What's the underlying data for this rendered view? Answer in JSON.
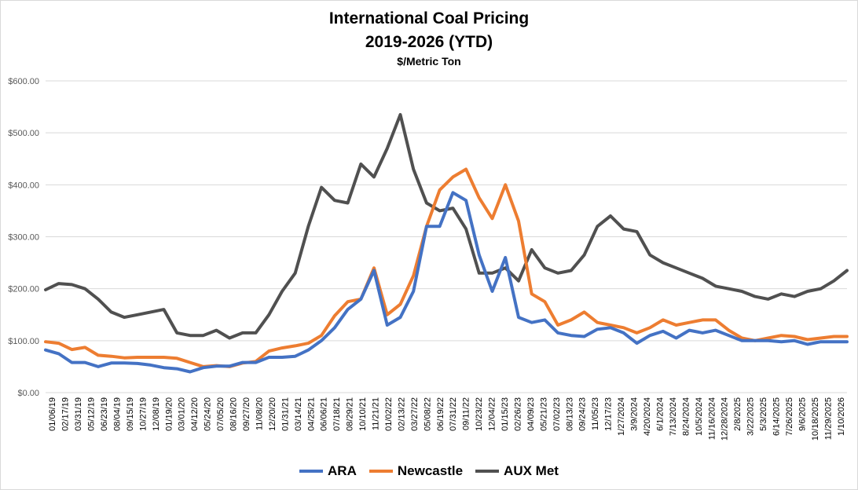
{
  "chart_data": {
    "type": "line",
    "title": "International Coal Pricing",
    "subtitle": "2019-2026 (YTD)",
    "ylabel": "$/Metric Ton",
    "ylim": [
      0,
      600
    ],
    "y_ticks": [
      "$0.00",
      "$100.00",
      "$200.00",
      "$300.00",
      "$400.00",
      "$500.00",
      "$600.00"
    ],
    "x_tick_labels": [
      "01/06/19",
      "02/17/19",
      "03/31/19",
      "05/12/19",
      "06/23/19",
      "08/04/19",
      "09/15/19",
      "10/27/19",
      "12/08/19",
      "01/19/20",
      "03/01/20",
      "04/12/20",
      "05/24/20",
      "07/05/20",
      "08/16/20",
      "09/27/20",
      "11/08/20",
      "12/20/20",
      "01/31/21",
      "03/14/21",
      "04/25/21",
      "06/06/21",
      "07/18/21",
      "08/29/21",
      "10/10/21",
      "11/21/21",
      "01/02/22",
      "02/13/22",
      "03/27/22",
      "05/08/22",
      "06/19/22",
      "07/31/22",
      "09/11/22",
      "10/23/22",
      "12/04/22",
      "01/15/23",
      "02/26/23",
      "04/09/23",
      "05/21/23",
      "07/02/23",
      "08/13/23",
      "09/24/23",
      "11/05/23",
      "12/17/23",
      "1/27/2024",
      "3/9/2024",
      "4/20/2024",
      "6/1/2024",
      "7/13/2024",
      "8/24/2024",
      "10/5/2024",
      "11/16/2024",
      "12/28/2024",
      "2/8/2025",
      "3/22/2025",
      "5/3/2025",
      "6/14/2025",
      "7/26/2025",
      "9/6/2025",
      "10/18/2025",
      "11/29/2025",
      "1/10/2026"
    ],
    "grid": true,
    "legend_position": "bottom",
    "series": [
      {
        "name": "ARA",
        "color": "#4472c4",
        "values": [
          82,
          75,
          58,
          58,
          50,
          57,
          57,
          56,
          53,
          48,
          46,
          40,
          48,
          51,
          51,
          58,
          58,
          68,
          68,
          70,
          82,
          100,
          125,
          160,
          180,
          235,
          130,
          145,
          195,
          320,
          320,
          385,
          370,
          265,
          195,
          260,
          145,
          135,
          140,
          115,
          110,
          108,
          122,
          125,
          115,
          95,
          110,
          118,
          105,
          120,
          115,
          120,
          110,
          100,
          100,
          100,
          98,
          100,
          93,
          98,
          98,
          98
        ]
      },
      {
        "name": "Newcastle",
        "color": "#ed7d31",
        "values": [
          98,
          95,
          83,
          87,
          72,
          70,
          67,
          68,
          68,
          68,
          66,
          58,
          50,
          52,
          50,
          57,
          60,
          80,
          86,
          90,
          95,
          110,
          148,
          175,
          180,
          240,
          150,
          170,
          225,
          320,
          390,
          415,
          430,
          375,
          335,
          400,
          330,
          190,
          175,
          130,
          140,
          155,
          135,
          130,
          125,
          115,
          125,
          140,
          130,
          135,
          140,
          140,
          120,
          105,
          100,
          105,
          110,
          108,
          102,
          105,
          108,
          108
        ]
      },
      {
        "name": "AUX Met",
        "color": "#505050",
        "values": [
          198,
          210,
          208,
          200,
          180,
          155,
          145,
          150,
          155,
          160,
          115,
          110,
          110,
          120,
          105,
          115,
          115,
          150,
          195,
          230,
          320,
          395,
          370,
          365,
          440,
          415,
          470,
          535,
          430,
          365,
          350,
          355,
          315,
          230,
          230,
          240,
          215,
          275,
          240,
          230,
          235,
          265,
          320,
          340,
          315,
          310,
          265,
          250,
          240,
          230,
          220,
          205,
          200,
          195,
          185,
          180,
          190,
          185,
          195,
          200,
          215,
          235
        ]
      }
    ]
  }
}
